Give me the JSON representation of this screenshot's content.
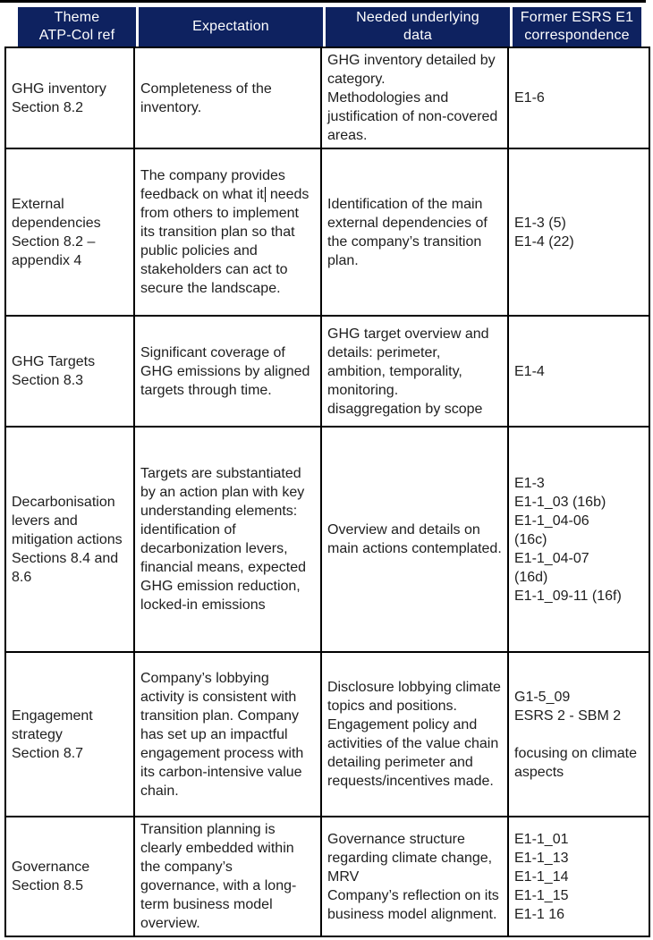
{
  "colors": {
    "header_bg": "#0e2260",
    "header_text": "#ffffff",
    "body_text": "#1e1e1e",
    "border": "#000000"
  },
  "table": {
    "headers": [
      "Theme\nATP-Col ref",
      "Expectation",
      "Needed underlying\ndata",
      "Former ESRS E1\ncorrespondence"
    ],
    "rows": [
      {
        "theme": "GHG inventory\nSection 8.2",
        "expectation": "Completeness of the inventory.",
        "needed_data": "GHG inventory detailed by category.\nMethodologies and justification of non-covered areas.",
        "former_esrs": "E1-6"
      },
      {
        "theme": "External dependencies\nSection 8.2 – appendix 4",
        "expectation_before_caret": "The company provides feedback on what it",
        "expectation_after_caret": " needs from others to implement its transition plan so that public policies and stakeholders can act to secure the landscape.",
        "needed_data": "Identification of the main external dependencies of the company’s transition plan.",
        "former_esrs": "E1-3 (5)\nE1-4 (22)"
      },
      {
        "theme": "GHG Targets\nSection 8.3",
        "expectation": "Significant coverage of GHG emissions by aligned targets through time.",
        "needed_data": "GHG target overview and details: perimeter, ambition, temporality, monitoring.\ndisaggregation by scope",
        "former_esrs": "E1-4"
      },
      {
        "theme": "Decarbonisation levers and mitigation actions\nSections 8.4 and 8.6",
        "expectation": "Targets are substantiated by an action plan with key understanding elements: identification of decarbonization levers, financial means, expected GHG emission reduction, locked-in emissions",
        "needed_data": "Overview and details on main actions contemplated.",
        "former_esrs": "E1-3\nE1-1_03 (16b)\nE1-1_04-06\n(16c)\nE1-1_04-07\n(16d)\nE1-1_09-11 (16f)"
      },
      {
        "theme": "Engagement strategy\nSection 8.7",
        "expectation": "Company’s lobbying activity is consistent with transition plan. Company has set up an impactful engagement process with its carbon-intensive value chain.",
        "needed_data": "Disclosure lobbying climate topics and positions.\nEngagement policy and activities of the value chain detailing perimeter and requests/incentives made.",
        "former_esrs": "G1-5_09\nESRS 2 - SBM 2\n\nfocusing on climate aspects"
      },
      {
        "theme": "Governance\nSection 8.5",
        "expectation": "Transition planning is clearly embedded within the company’s governance, with a long-term business model overview.",
        "needed_data": "Governance structure regarding climate change, MRV\nCompany’s reflection on its business model alignment.",
        "former_esrs": "E1-1_01\nE1-1_13\nE1-1_14\nE1-1_15\nE1-1 16"
      }
    ]
  }
}
